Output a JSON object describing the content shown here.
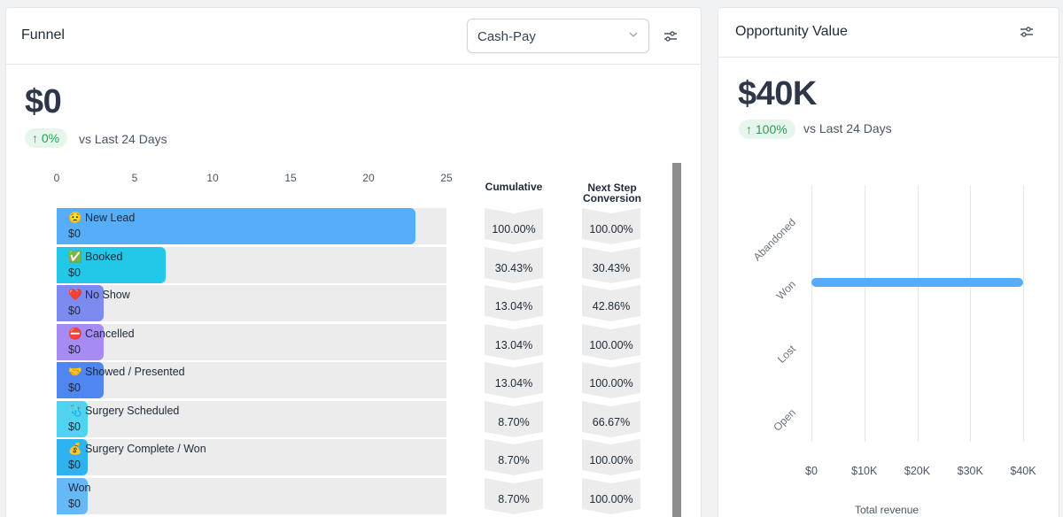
{
  "funnel": {
    "title": "Funnel",
    "pipeline_select": {
      "value": "Cash-Pay",
      "icon": "chevron-down-icon"
    },
    "filter_icon": "sliders-icon",
    "total_value": "$0",
    "change_badge": "↑ 0%",
    "change_text": "vs Last 24 Days",
    "axis_ticks": [
      "0",
      "5",
      "10",
      "15",
      "20",
      "25"
    ],
    "axis_max": 25,
    "columns": {
      "cumulative": "Cumulative",
      "next_step_line1": "Next Step",
      "next_step_line2": "Conversion"
    },
    "stages": [
      {
        "label": "😟 New Lead",
        "value": "$0",
        "count": 23,
        "color": "#56aef8",
        "cumulative": "100.00%",
        "next_step": "100.00%"
      },
      {
        "label": "✅ Booked",
        "value": "$0",
        "count": 7,
        "color": "#22c8e8",
        "cumulative": "30.43%",
        "next_step": "30.43%"
      },
      {
        "label": "❤️ No Show",
        "value": "$0",
        "count": 3,
        "color": "#7d8af0",
        "cumulative": "13.04%",
        "next_step": "42.86%"
      },
      {
        "label": "⛔ Cancelled",
        "value": "$0",
        "count": 3,
        "color": "#a78bf5",
        "cumulative": "13.04%",
        "next_step": "100.00%"
      },
      {
        "label": "🤝 Showed / Presented",
        "value": "$0",
        "count": 3,
        "color": "#4f86f0",
        "cumulative": "13.04%",
        "next_step": "100.00%"
      },
      {
        "label": "🩺 Surgery Scheduled",
        "value": "$0",
        "count": 2,
        "color": "#4fd3f0",
        "cumulative": "8.70%",
        "next_step": "66.67%"
      },
      {
        "label": "💰 Surgery Complete / Won",
        "value": "$0",
        "count": 2,
        "color": "#2fb3ee",
        "cumulative": "8.70%",
        "next_step": "100.00%"
      },
      {
        "label": "Won",
        "value": "$0",
        "count": 2,
        "color": "#66b8f7",
        "cumulative": "8.70%",
        "next_step": "100.00%"
      }
    ]
  },
  "opportunity": {
    "title": "Opportunity Value",
    "filter_icon": "sliders-icon",
    "total_value": "$40K",
    "change_badge": "↑ 100%",
    "change_text": "vs Last 24 Days"
  },
  "chart_data": {
    "type": "bar",
    "orientation": "horizontal",
    "categories": [
      "Abandoned",
      "Won",
      "Lost",
      "Open"
    ],
    "values": [
      0,
      40000,
      0,
      0
    ],
    "x_ticks": [
      "$0",
      "$10K",
      "$20K",
      "$30K",
      "$40K"
    ],
    "xlim": [
      0,
      40000
    ],
    "xlabel": "Total revenue",
    "color": "#55adf8",
    "grid": true
  }
}
